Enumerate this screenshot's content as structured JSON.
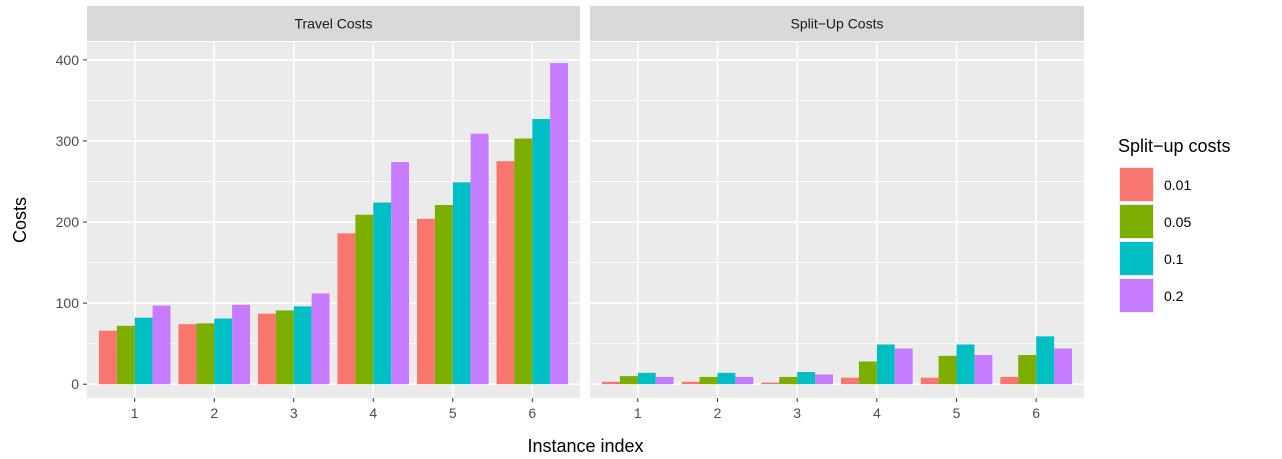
{
  "chart_data": {
    "type": "bar",
    "facets": [
      {
        "title": "Travel Costs",
        "categories": [
          "1",
          "2",
          "3",
          "4",
          "5",
          "6"
        ],
        "series": [
          {
            "name": "0.01",
            "values": [
              66,
              74,
              87,
              186,
              204,
              275
            ]
          },
          {
            "name": "0.05",
            "values": [
              72,
              75,
              91,
              209,
              221,
              303
            ]
          },
          {
            "name": "0.1",
            "values": [
              82,
              81,
              96,
              224,
              249,
              327
            ]
          },
          {
            "name": "0.2",
            "values": [
              97,
              98,
              112,
              274,
              309,
              396
            ]
          }
        ]
      },
      {
        "title": "Split−Up Costs",
        "categories": [
          "1",
          "2",
          "3",
          "4",
          "5",
          "6"
        ],
        "series": [
          {
            "name": "0.01",
            "values": [
              3,
              3,
              2,
              8,
              8,
              9
            ]
          },
          {
            "name": "0.05",
            "values": [
              10,
              9,
              9,
              28,
              35,
              36
            ]
          },
          {
            "name": "0.1",
            "values": [
              14,
              14,
              15,
              49,
              49,
              59
            ]
          },
          {
            "name": "0.2",
            "values": [
              9,
              9,
              12,
              44,
              36,
              44
            ]
          }
        ]
      }
    ],
    "y_ticks": [
      0,
      100,
      200,
      300,
      400
    ],
    "ylim": [
      -17,
      422
    ],
    "xlabel": "Instance index",
    "ylabel": "Costs",
    "legend": {
      "title": "Split−up costs",
      "position": "right",
      "entries": [
        "0.01",
        "0.05",
        "0.1",
        "0.2"
      ]
    },
    "colors": [
      "#F8766D",
      "#7CAE00",
      "#00BFC4",
      "#C77CFF"
    ],
    "panel_background": "#EBEBEB",
    "strip_background": "#D9D9D9",
    "gridline_color": "#FFFFFF",
    "grid": true
  }
}
